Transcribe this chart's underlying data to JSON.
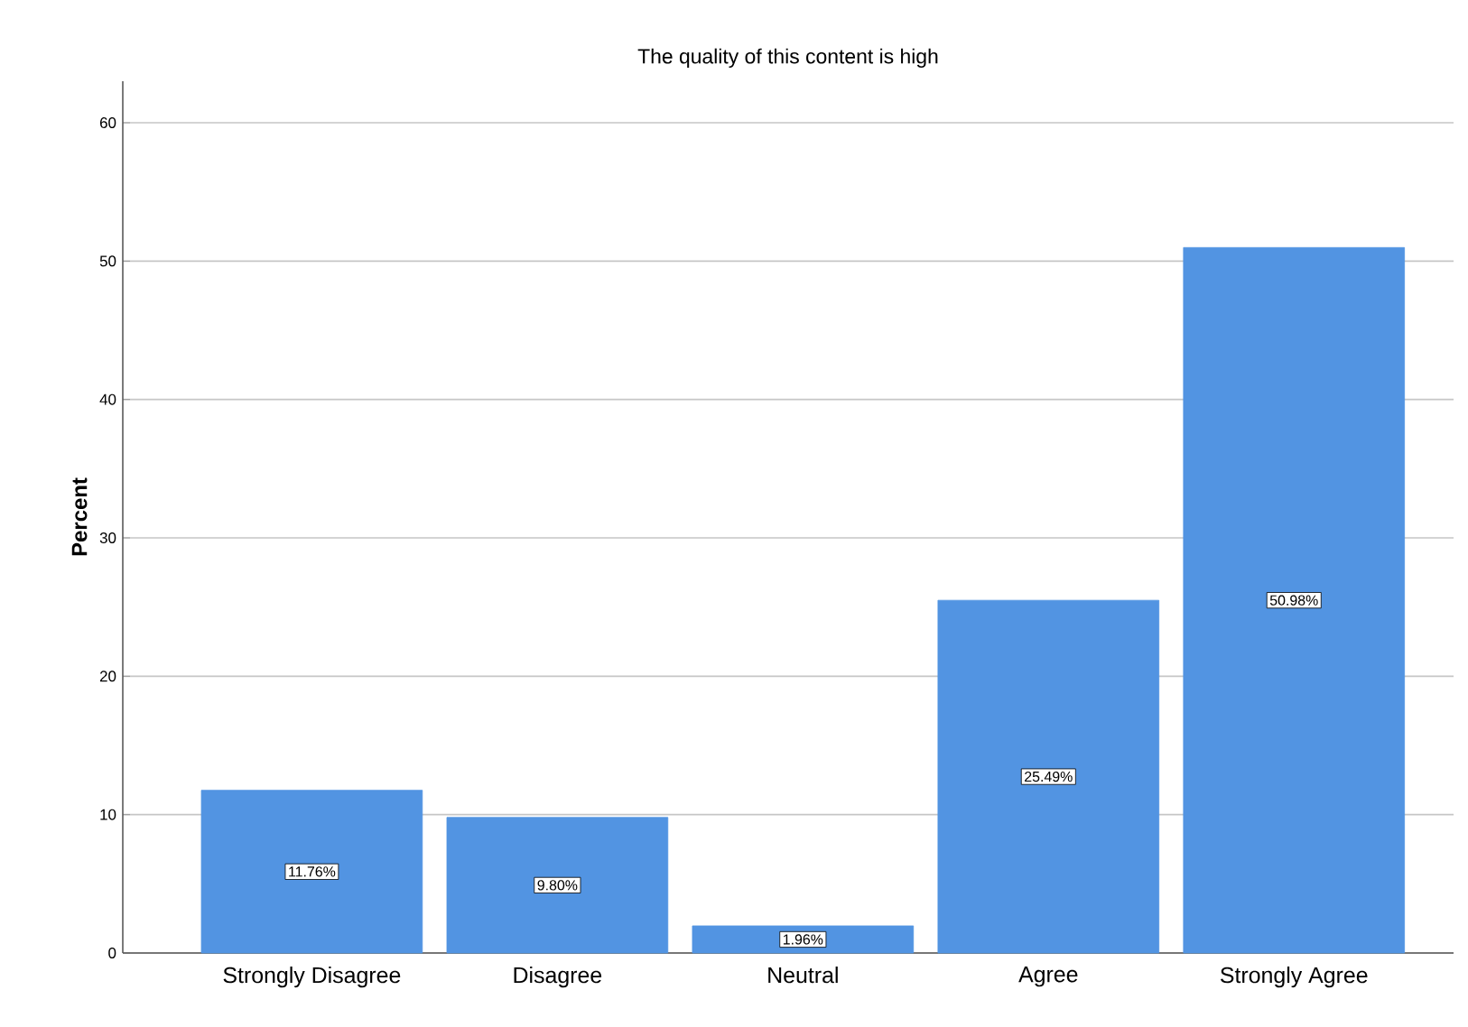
{
  "chart_data": {
    "type": "bar",
    "title": "The quality of this content is high",
    "ylabel": "Percent",
    "categories": [
      "Strongly Disagree",
      "Disagree",
      "Neutral",
      "Agree",
      "Strongly Agree"
    ],
    "values": [
      11.76,
      9.8,
      1.96,
      25.49,
      50.98
    ],
    "value_labels": [
      "11.76%",
      "9.80%",
      "1.96%",
      "25.49%",
      "50.98%"
    ],
    "color": "#5294e2",
    "ylim": [
      0,
      63
    ],
    "yticks": [
      0,
      10,
      20,
      30,
      40,
      50,
      60
    ],
    "grid": "y"
  }
}
